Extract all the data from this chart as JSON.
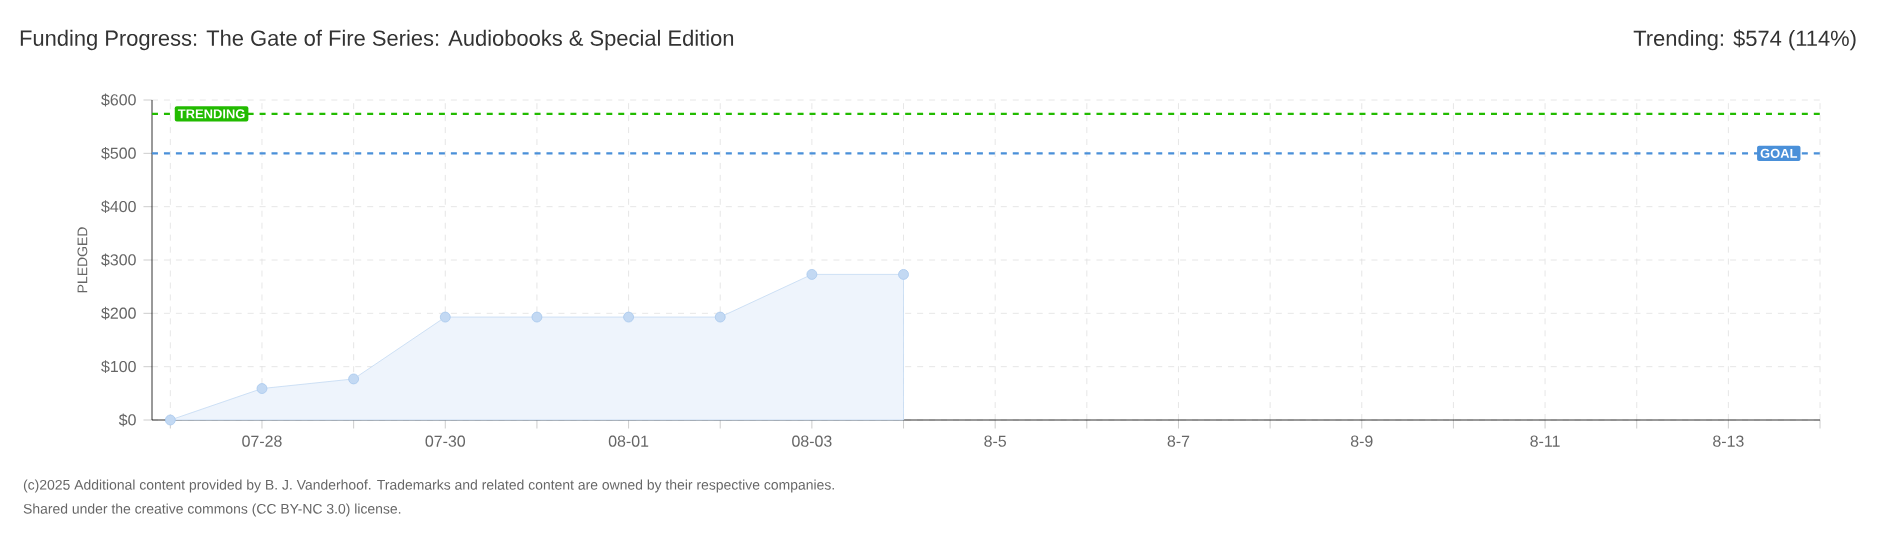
{
  "chart_data": {
    "type": "area",
    "title": "Funding Progress: The Gate of Fire Series: Audiobooks & Special Edition",
    "subtitle": "Trending:  $574 (114%)",
    "ylabel": "PLEDGED",
    "categories": [
      null,
      "07-28",
      null,
      "07-30",
      null,
      "08-01",
      null,
      "08-03",
      null,
      "8-5",
      null,
      "8-7",
      null,
      "8-9",
      null,
      "8-11",
      null,
      "8-13",
      null
    ],
    "series": [
      {
        "color": "#a9c9ee",
        "values": [
          0,
          59,
          77,
          193,
          193,
          193,
          193,
          273,
          273,
          null,
          null,
          null,
          null,
          null,
          null,
          null,
          null,
          null,
          null
        ]
      }
    ],
    "ylim": [
      0,
      600
    ],
    "yticks": [
      {
        "value": 0,
        "label": "$0"
      },
      {
        "value": 100,
        "label": "$100"
      },
      {
        "value": 200,
        "label": "$200"
      },
      {
        "value": 300,
        "label": "$300"
      },
      {
        "value": 400,
        "label": "$400"
      },
      {
        "value": 500,
        "label": "$500"
      },
      {
        "value": 600,
        "label": "$600"
      }
    ],
    "ref_lines": [
      {
        "axis": "y",
        "value": 574,
        "label": "TRENDING",
        "color": "#22bb00",
        "line_style": "dashed"
      },
      {
        "axis": "y",
        "value": 500,
        "label": "GOAL",
        "color": "#4a90d9",
        "line_style": "dashed"
      }
    ],
    "grid": true,
    "marker": "circle",
    "annotations": [
      "(c)2025 Additional content provided by B. J. Vanderhoof. Trademarks and related content are owned by their respective companies.",
      "Shared under the creative commons (CC BY-NC 3.0) license."
    ]
  }
}
